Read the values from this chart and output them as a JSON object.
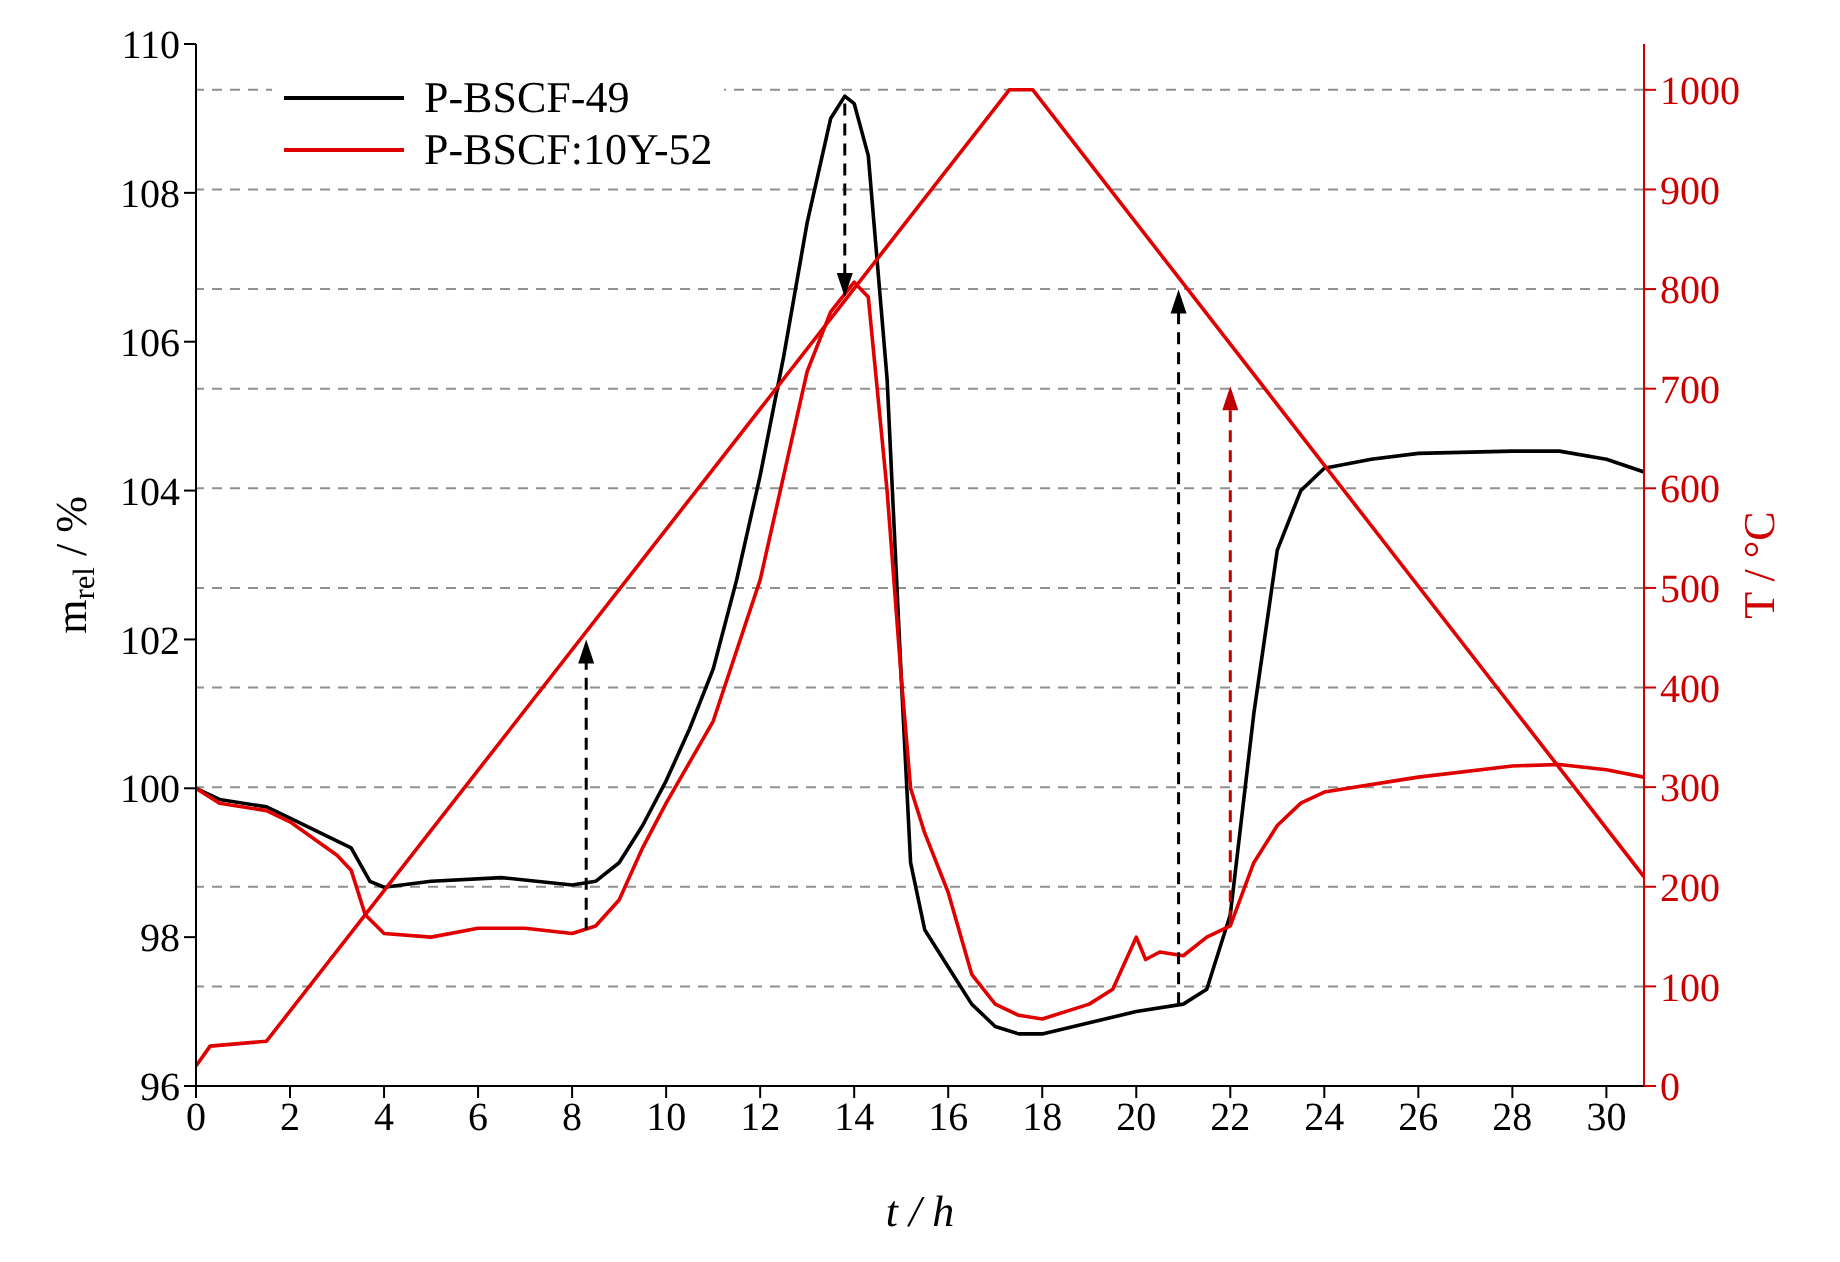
{
  "chart_data": {
    "type": "line",
    "xlabel": "t / h",
    "ylabel": "m$_{rel}$ / %",
    "y2label": "T / °C",
    "xlim": [
      0,
      30.8
    ],
    "xticks": [
      0,
      2,
      4,
      6,
      8,
      10,
      12,
      14,
      16,
      18,
      20,
      22,
      24,
      26,
      28,
      30
    ],
    "ylim": [
      96,
      110
    ],
    "yticks": [
      96,
      98,
      100,
      102,
      104,
      106,
      108,
      110
    ],
    "y2lim": [
      0,
      1046
    ],
    "y2ticks": [
      0,
      100,
      200,
      300,
      400,
      500,
      600,
      700,
      800,
      900,
      1000
    ],
    "grid": "y",
    "legend": "top left",
    "marker": "none",
    "line_style": "solid",
    "series": [
      {
        "name": "P-BSCF-49",
        "color": "#000000",
        "x": [
          0,
          0.5,
          1.5,
          2,
          3.3,
          3.7,
          4,
          5,
          6.5,
          8,
          8.5,
          9,
          9.5,
          10,
          10.5,
          11,
          11.5,
          12,
          12.5,
          13,
          13.5,
          13.8,
          14,
          14.3,
          14.7,
          15,
          15.2,
          15.5,
          16,
          16.5,
          17,
          17.5,
          18,
          19,
          20,
          21,
          21.5,
          22,
          22.5,
          23,
          23.5,
          24,
          25,
          26,
          28,
          29,
          30,
          30.8
        ],
        "values": [
          100,
          99.85,
          99.75,
          99.6,
          99.2,
          98.75,
          98.67,
          98.75,
          98.8,
          98.7,
          98.75,
          99,
          99.5,
          100.1,
          100.8,
          101.6,
          102.8,
          104.2,
          105.8,
          107.6,
          109,
          109.3,
          109.2,
          108.5,
          105.5,
          101.5,
          99,
          98.1,
          97.6,
          97.1,
          96.8,
          96.7,
          96.7,
          96.85,
          97,
          97.1,
          97.3,
          98.3,
          101,
          103.2,
          104,
          104.3,
          104.42,
          104.5,
          104.53,
          104.53,
          104.42,
          104.25
        ]
      },
      {
        "name": "P-BSCF:10Y-52",
        "color": "#e00000",
        "x": [
          0,
          0.5,
          1.5,
          2,
          3,
          3.3,
          3.6,
          4,
          5,
          6,
          7,
          8,
          8.5,
          9,
          9.5,
          10,
          11,
          12,
          12.5,
          13,
          13.5,
          14,
          14.3,
          14.7,
          15,
          15.2,
          15.5,
          16,
          16.5,
          17,
          17.5,
          18,
          19,
          19.5,
          20,
          20.2,
          20.5,
          21,
          21.5,
          22,
          22.5,
          23,
          23.5,
          24,
          26,
          28,
          29,
          30,
          30.8
        ],
        "values": [
          100,
          99.8,
          99.7,
          99.55,
          99.1,
          98.9,
          98.3,
          98.05,
          98,
          98.12,
          98.12,
          98.05,
          98.15,
          98.5,
          99.2,
          99.8,
          100.9,
          102.8,
          104.2,
          105.6,
          106.4,
          106.8,
          106.6,
          104,
          101.5,
          100,
          99.4,
          98.6,
          97.5,
          97.1,
          96.95,
          96.9,
          97.1,
          97.3,
          98,
          97.7,
          97.8,
          97.75,
          98,
          98.15,
          99,
          99.5,
          99.8,
          99.95,
          100.15,
          100.3,
          100.32,
          100.25,
          100.15
        ]
      },
      {
        "color": "#e00000",
        "axis": "y2",
        "x": [
          0,
          0.3,
          1.5,
          17.3,
          17.8,
          30.8
        ],
        "values": [
          20,
          40,
          45,
          1000,
          1000,
          210
        ]
      }
    ]
  }
}
